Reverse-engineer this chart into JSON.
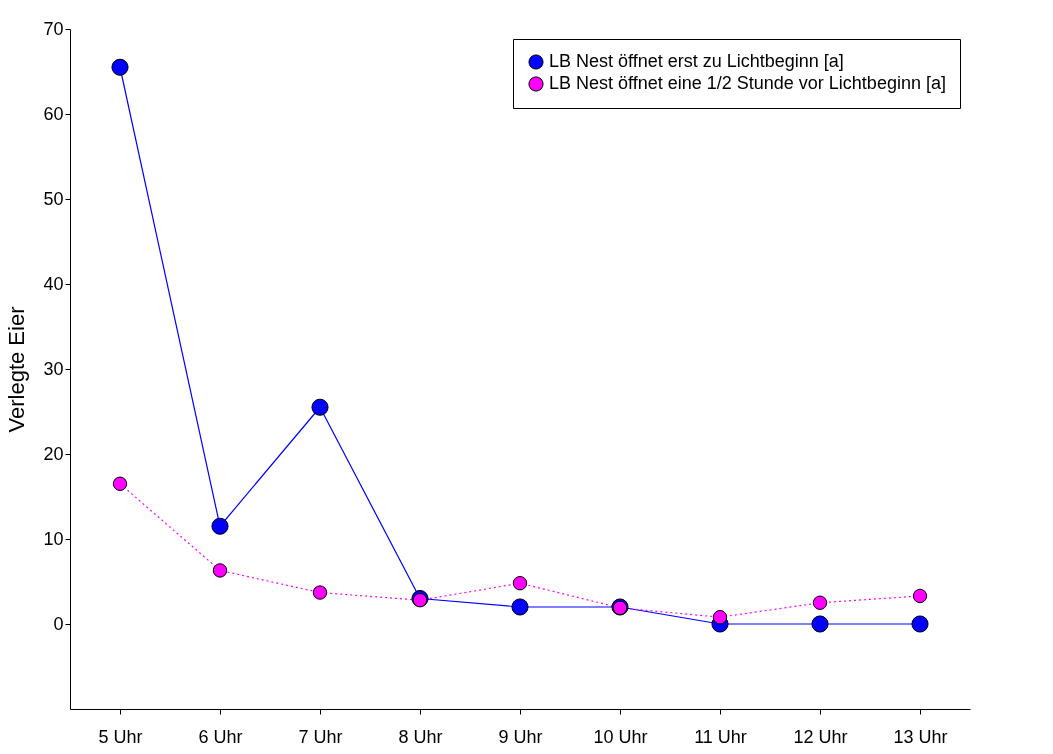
{
  "chart_data": {
    "type": "line",
    "ylabel": "Verlegte Eier",
    "categories": [
      "5 Uhr",
      "6 Uhr",
      "7 Uhr",
      "8 Uhr",
      "9 Uhr",
      "10 Uhr",
      "11 Uhr",
      "12 Uhr",
      "13 Uhr"
    ],
    "series": [
      {
        "name": "LB Nest öffnet erst zu Lichtbeginn [a]",
        "color": "#0000ff",
        "line_style": "solid",
        "values": [
          65.5,
          11.5,
          25.5,
          3.0,
          2.0,
          2.0,
          0,
          0,
          0
        ]
      },
      {
        "name": "LB Nest öffnet eine 1/2 Stunde vor Lichtbeginn [a]",
        "color": "#ff00ff",
        "line_style": "dotted",
        "values": [
          16.5,
          6.3,
          3.7,
          2.8,
          4.8,
          1.9,
          0.8,
          2.5,
          3.3
        ]
      }
    ],
    "ylim": [
      -10,
      70
    ],
    "yticks": [
      0,
      10,
      20,
      30,
      40,
      50,
      60,
      70
    ],
    "grid": false,
    "legend": "top right",
    "marker": "circle"
  }
}
